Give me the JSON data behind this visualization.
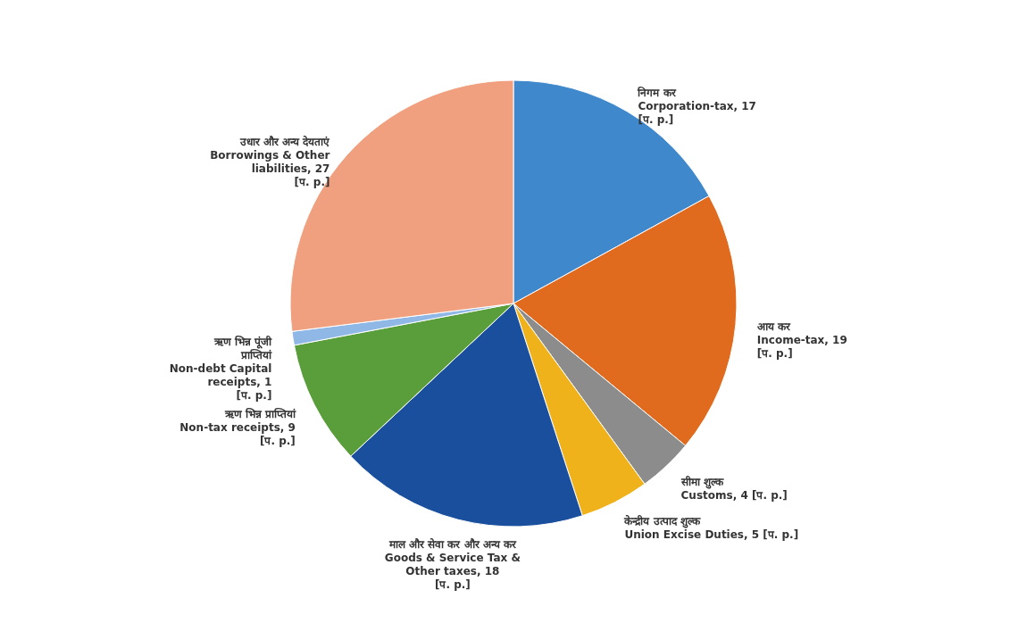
{
  "chart_data": {
    "type": "pie",
    "categories": [
      "निगम कर\nCorporation-tax, 17\n[प. p.]",
      "आय कर\nIncome-tax, 19\n[प. p.]",
      "सीमा शुल्क\nCustoms, 4 [प. p.]",
      "केन्द्रीय उत्पाद शुल्क\nUnion Excise Duties, 5 [प. p.]",
      "माल और सेवा कर और अन्य कर\nGoods & Service Tax &\nOther taxes, 18\n[प. p.]",
      "ऋण भिन्न प्राप्तियां\nNon-tax receipts, 9\n[प. p.]",
      "ऋण भिन्न पूंजी\nप्राप्तियां\nNon-debt Capital\nreceipts, 1\n[प. p.]",
      "उधार और अन्य देयताएं\nBorrowings & Other\nliabilities, 27\n[प. p.]"
    ],
    "values": [
      17,
      19,
      4,
      5,
      18,
      9,
      1,
      27
    ],
    "colors": [
      "#3f88cc",
      "#e06a1e",
      "#8c8c8c",
      "#f0b21a",
      "#1a4f9e",
      "#5a9e3c",
      "#8fb8e6",
      "#f0a07e"
    ]
  }
}
